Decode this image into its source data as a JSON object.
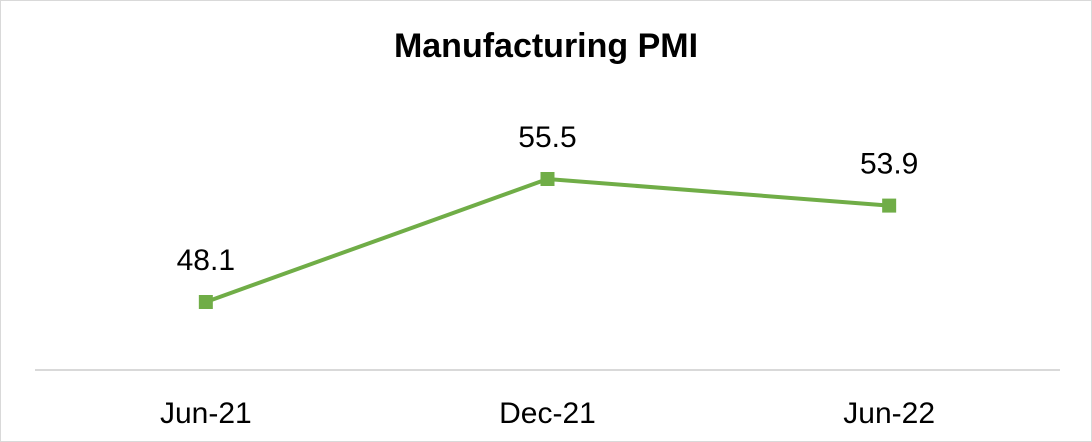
{
  "chart_data": {
    "type": "line",
    "title": "Manufacturing PMI",
    "categories": [
      "Jun-21",
      "Dec-21",
      "Jun-22"
    ],
    "series": [
      {
        "name": "Manufacturing PMI",
        "color": "#70ad47",
        "values": [
          48.1,
          55.5,
          53.9
        ]
      }
    ]
  }
}
